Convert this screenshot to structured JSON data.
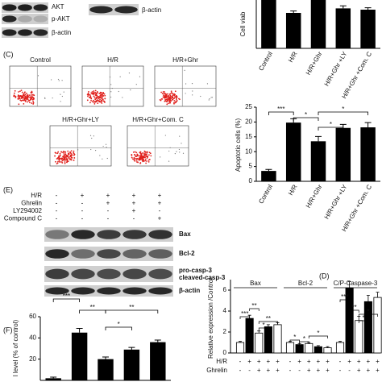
{
  "panels": {
    "C": "(C)",
    "E": "(E)",
    "F": "(F)",
    "D": "(D)"
  },
  "blot_top": {
    "labels": [
      "AKT",
      "p-AKT",
      "β-actin"
    ],
    "right_label": "β-actin"
  },
  "flow": {
    "titles": [
      "Control",
      "H/R",
      "H/R+Ghr",
      "H/R+Ghr+LY",
      "H/R+Ghr+Com. C"
    ]
  },
  "blot_e": {
    "treatments": [
      {
        "name": "H/R",
        "signs": [
          "-",
          "+",
          "+",
          "+",
          "+"
        ]
      },
      {
        "name": "Ghrelin",
        "signs": [
          "-",
          "-",
          "+",
          "+",
          "+"
        ]
      },
      {
        "name": "LY294002",
        "signs": [
          "-",
          "-",
          "-",
          "+",
          "-"
        ]
      },
      {
        "name": "Compound C",
        "signs": [
          "-",
          "-",
          "-",
          "-",
          "+"
        ]
      }
    ],
    "bands": [
      "Bax",
      "Bcl-2",
      "pro-casp-3",
      "cleaved-casp-3",
      "β-actin"
    ]
  },
  "chart_data": [
    {
      "type": "bar",
      "ylabel": "Cell viab",
      "categories": [
        "Control",
        "H/R",
        "H/R+Ghr",
        "H/R+Ghr +LY",
        "H/R+Ghr +Com. C"
      ],
      "values": [
        100,
        55,
        92,
        62,
        60
      ],
      "errors": [
        3,
        3,
        4,
        4,
        3
      ],
      "ylim": [
        0,
        100
      ],
      "color": "#000000"
    },
    {
      "type": "bar",
      "ylabel": "Apoptotic cells (%)",
      "categories": [
        "Control",
        "H/R",
        "H/R+Ghr",
        "H/R+Ghr +LY",
        "H/R+Ghr +Com. C"
      ],
      "values": [
        3.5,
        19.8,
        13.5,
        18,
        18.2
      ],
      "errors": [
        0.5,
        1.3,
        1.6,
        1.2,
        1.6
      ],
      "ylim": [
        0,
        25
      ],
      "yticks": [
        0,
        5,
        10,
        15,
        20,
        25
      ],
      "color": "#000000",
      "annotations": [
        "***",
        "*",
        "*",
        "*"
      ]
    },
    {
      "type": "bar",
      "ylabel": "l level (% of control)",
      "values": [
        2,
        45,
        20,
        29,
        36
      ],
      "errors": [
        1,
        4,
        2,
        2,
        2
      ],
      "ylim": [
        0,
        60
      ],
      "yticks": [
        20,
        40,
        60
      ],
      "color": "#000000",
      "annotations": [
        "***",
        "**",
        "*",
        "**"
      ]
    },
    {
      "type": "grouped_bar",
      "ylabel": "Relative expression /Control",
      "series": [
        {
          "name": "Bax",
          "color": "#000000",
          "values": [
            1,
            3.3,
            1.9,
            2.5,
            2.7
          ],
          "errors": [
            0.1,
            0.3,
            0.2,
            0.2,
            0.2
          ]
        },
        {
          "name": "Bcl-2",
          "color": "#000000",
          "values": [
            1,
            0.8,
            0.9,
            0.6,
            0.5
          ],
          "errors": [
            0.1,
            0.1,
            0.1,
            0.1,
            0.1
          ]
        },
        {
          "name": "C/P-Caspase-3",
          "color": "#000000",
          "values": [
            1,
            6.2,
            3.1,
            4.9,
            5.3
          ],
          "errors": [
            0.1,
            0.6,
            0.4,
            0.6,
            0.5
          ]
        }
      ],
      "ylim": [
        0,
        7
      ],
      "yticks": [
        0,
        2,
        4,
        6
      ],
      "treatments": [
        {
          "name": "H/R",
          "signs": [
            "-",
            "+",
            "+",
            "+",
            "+",
            "-",
            "+",
            "+",
            "+",
            "+",
            "-",
            "+",
            "+",
            "+",
            "+"
          ]
        },
        {
          "name": "Ghrelin",
          "signs": [
            "-",
            "-",
            "+",
            "+",
            "+",
            "-",
            "-",
            "+",
            "+",
            "+",
            "-",
            "-",
            "+",
            "+",
            "+"
          ]
        }
      ],
      "annotations": [
        "***",
        "**",
        "*",
        "**",
        "*",
        "*",
        "*",
        "***",
        "**",
        "*",
        "*"
      ]
    }
  ]
}
